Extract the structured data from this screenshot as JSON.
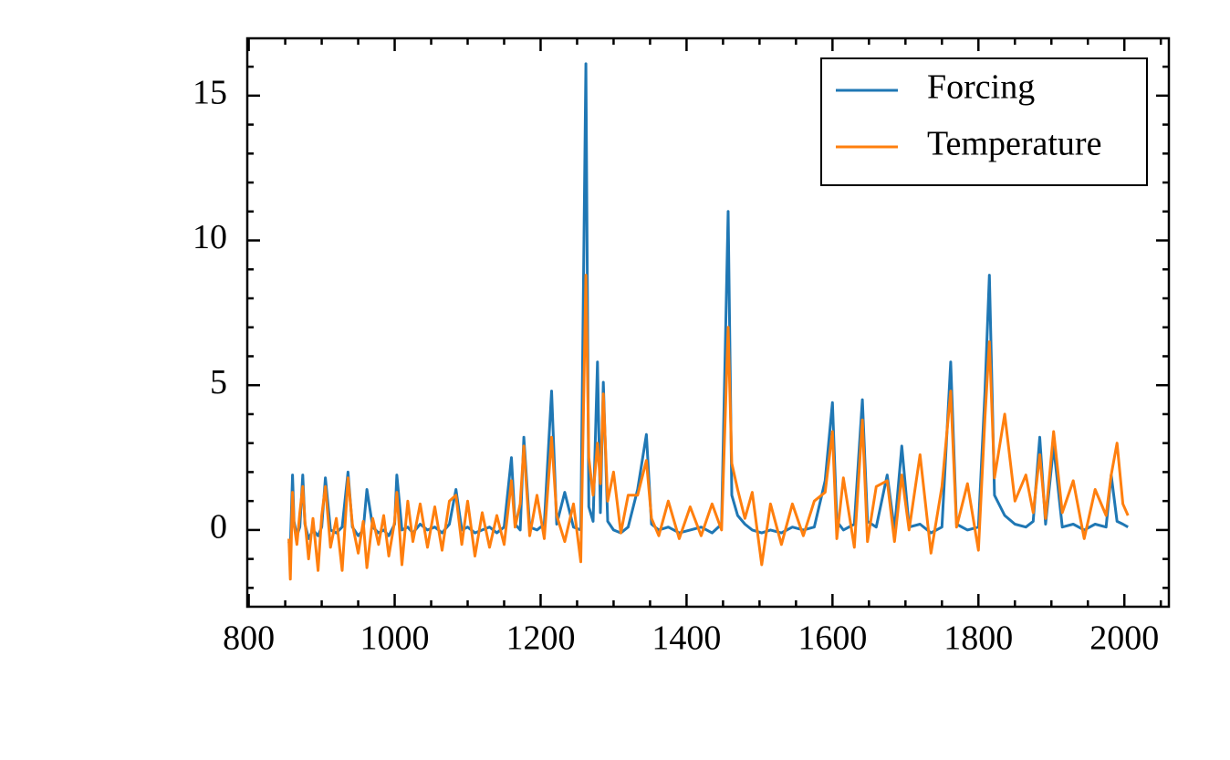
{
  "chart_data": {
    "type": "line",
    "x": [
      855,
      857,
      860,
      862,
      866,
      870,
      874,
      877,
      882,
      888,
      895,
      900,
      905,
      912,
      920,
      928,
      936,
      942,
      950,
      957,
      962,
      970,
      978,
      985,
      992,
      1000,
      1003,
      1010,
      1018,
      1025,
      1035,
      1045,
      1055,
      1065,
      1075,
      1084,
      1092,
      1100,
      1110,
      1120,
      1130,
      1140,
      1150,
      1160,
      1165,
      1172,
      1177,
      1185,
      1195,
      1205,
      1215,
      1222,
      1233,
      1245,
      1255,
      1262,
      1266,
      1272,
      1278,
      1282,
      1286,
      1292,
      1300,
      1310,
      1320,
      1333,
      1345,
      1352,
      1362,
      1375,
      1390,
      1405,
      1420,
      1435,
      1448,
      1457,
      1462,
      1470,
      1480,
      1490,
      1503,
      1515,
      1530,
      1545,
      1560,
      1575,
      1590,
      1600,
      1606,
      1615,
      1630,
      1641,
      1648,
      1660,
      1675,
      1685,
      1695,
      1705,
      1720,
      1735,
      1750,
      1762,
      1770,
      1785,
      1800,
      1809,
      1815,
      1822,
      1836,
      1850,
      1865,
      1875,
      1884,
      1892,
      1903,
      1915,
      1930,
      1945,
      1960,
      1975,
      1982,
      1990,
      1998,
      2005
    ],
    "series": [
      {
        "name": "Forcing",
        "color": "#1f77b4",
        "values": [
          -0.4,
          -0.6,
          1.9,
          0.3,
          -0.2,
          0.1,
          1.9,
          0.2,
          -0.3,
          0.0,
          -0.2,
          0.1,
          1.8,
          0.0,
          -0.1,
          0.1,
          2.0,
          0.1,
          -0.2,
          0.0,
          1.4,
          0.1,
          -0.1,
          0.0,
          -0.2,
          0.2,
          1.9,
          0.0,
          0.1,
          -0.1,
          0.2,
          0.0,
          0.1,
          -0.1,
          0.2,
          1.4,
          0.0,
          0.1,
          -0.1,
          0.0,
          0.1,
          -0.1,
          0.1,
          2.5,
          0.2,
          0.0,
          3.2,
          0.1,
          0.0,
          0.2,
          4.8,
          0.2,
          1.3,
          0.1,
          0.0,
          16.1,
          0.8,
          0.3,
          5.8,
          0.6,
          5.1,
          0.3,
          0.0,
          -0.1,
          0.1,
          1.4,
          3.3,
          0.2,
          0.0,
          0.1,
          -0.1,
          0.0,
          0.1,
          -0.1,
          0.2,
          11.0,
          1.2,
          0.5,
          0.2,
          0.0,
          -0.1,
          0.0,
          -0.1,
          0.1,
          0.0,
          0.1,
          1.7,
          4.4,
          0.3,
          0.0,
          0.2,
          4.5,
          0.3,
          0.1,
          1.9,
          0.0,
          2.9,
          0.1,
          0.2,
          -0.1,
          0.1,
          5.8,
          0.2,
          0.0,
          0.1,
          4.8,
          8.8,
          1.2,
          0.5,
          0.2,
          0.1,
          0.3,
          3.2,
          0.2,
          2.9,
          0.1,
          0.2,
          0.0,
          0.2,
          0.1,
          1.9,
          0.3,
          0.2,
          0.1
        ]
      },
      {
        "name": "Temperature",
        "color": "#ff7f0e",
        "values": [
          -0.3,
          -1.7,
          1.3,
          0.2,
          -0.5,
          0.6,
          1.5,
          0.3,
          -1.0,
          0.4,
          -1.4,
          0.5,
          1.5,
          -0.6,
          0.4,
          -1.4,
          1.8,
          0.2,
          -0.8,
          0.3,
          -1.3,
          0.4,
          -0.5,
          0.5,
          -0.9,
          0.3,
          1.3,
          -1.2,
          1.0,
          -0.4,
          0.9,
          -0.6,
          0.8,
          -0.7,
          1.0,
          1.2,
          -0.5,
          1.0,
          -0.9,
          0.6,
          -0.6,
          0.5,
          -0.5,
          1.7,
          0.1,
          0.9,
          2.9,
          -0.2,
          1.2,
          -0.3,
          3.2,
          0.5,
          -0.4,
          0.9,
          -1.1,
          8.8,
          2.5,
          1.2,
          3.0,
          1.6,
          4.7,
          1.0,
          2.0,
          -0.1,
          1.2,
          1.2,
          2.4,
          0.4,
          -0.2,
          1.0,
          -0.3,
          0.8,
          -0.2,
          0.9,
          0.0,
          7.0,
          2.3,
          1.4,
          0.4,
          1.3,
          -1.2,
          0.9,
          -0.5,
          0.9,
          -0.2,
          1.0,
          1.3,
          3.4,
          -0.3,
          1.8,
          -0.6,
          3.8,
          -0.4,
          1.5,
          1.7,
          -0.4,
          1.9,
          0.0,
          2.6,
          -0.8,
          1.5,
          4.8,
          0.1,
          1.6,
          -0.7,
          3.9,
          6.5,
          1.8,
          4.0,
          1.0,
          1.9,
          0.6,
          2.6,
          0.4,
          3.4,
          0.6,
          1.7,
          -0.3,
          1.4,
          0.5,
          1.9,
          3.0,
          0.9,
          0.5
        ]
      }
    ],
    "xlim": [
      798,
      2061
    ],
    "ylim": [
      -2.65,
      16.98
    ],
    "xticks": [
      800,
      1000,
      1200,
      1400,
      1600,
      1800,
      2000
    ],
    "yticks": [
      0,
      5,
      10,
      15
    ],
    "xminorticks": [
      850,
      900,
      950,
      1050,
      1100,
      1150,
      1250,
      1300,
      1350,
      1450,
      1500,
      1550,
      1650,
      1700,
      1750,
      1850,
      1900,
      1950,
      2050
    ],
    "yminorticks": [
      -2,
      -1,
      1,
      2,
      3,
      4,
      6,
      7,
      8,
      9,
      11,
      12,
      13,
      14,
      16
    ],
    "legend": "upper right"
  }
}
